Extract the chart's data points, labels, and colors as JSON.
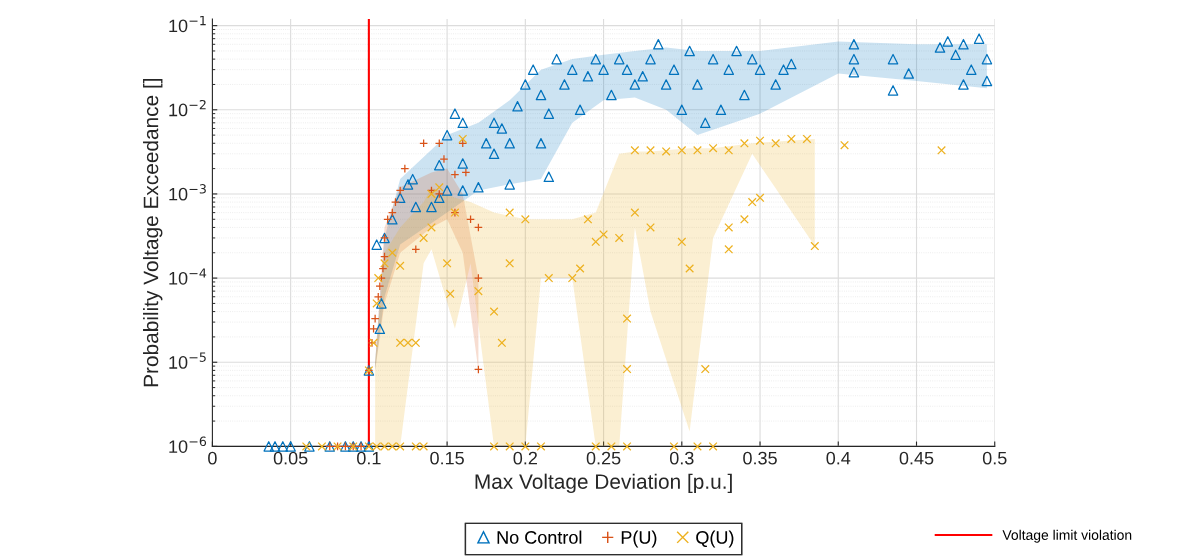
{
  "chart_data": {
    "type": "scatter",
    "xlabel": "Max Voltage Deviation [p.u.]",
    "ylabel": "Probability Voltage Exceedance []",
    "log": "y",
    "grid": true,
    "legend": "bottom",
    "xlim": [
      0,
      0.5
    ],
    "xticks": [
      0,
      0.05,
      0.1,
      0.15,
      0.2,
      0.25,
      0.3,
      0.35,
      0.4,
      0.45,
      0.5
    ],
    "ylim": [
      1e-06,
      0.12
    ],
    "yticks": [
      {
        "value": 1e-06,
        "label": "10$^{−6}$"
      },
      {
        "value": 1e-05,
        "label": "10$^{−5}$"
      },
      {
        "value": 0.0001,
        "label": "10$^{−4}$"
      },
      {
        "value": 0.001,
        "label": "10$^{−3}$"
      },
      {
        "value": 0.01,
        "label": "10$^{−2}$"
      },
      {
        "value": 0.1,
        "label": "10$^{−1}$"
      }
    ],
    "ref_lines": [
      {
        "axis": "x",
        "value": 0.1,
        "label": "Voltage limit violation",
        "color": "#ff0000",
        "line_style": "solid"
      }
    ],
    "series": [
      {
        "type": "line",
        "color": "#0072bd",
        "x": [
          0.104,
          0.11,
          0.12,
          0.15,
          0.17,
          0.19,
          0.21,
          0.23,
          0.25,
          0.27,
          0.29,
          0.31,
          0.35,
          0.4,
          0.45,
          0.495
        ],
        "values": [
          null,
          null,
          null,
          null,
          null,
          null,
          null,
          null,
          null,
          null,
          null,
          null,
          null,
          null,
          null,
          null
        ],
        "lower": [
          8e-06,
          6e-05,
          0.00025,
          0.0006,
          0.0011,
          0.0013,
          0.0015,
          0.007,
          0.013,
          0.014,
          0.01,
          0.005,
          0.009,
          0.027,
          0.022,
          0.018
        ],
        "upper": [
          1e-05,
          0.0003,
          0.0015,
          0.005,
          0.007,
          0.013,
          0.03,
          0.04,
          0.045,
          0.05,
          0.055,
          0.05,
          0.05,
          0.065,
          0.06,
          0.06
        ]
      },
      {
        "type": "line",
        "color": "#d95319",
        "x": [
          0.104,
          0.11,
          0.12,
          0.14,
          0.15,
          0.16,
          0.17
        ],
        "values": [
          null,
          null,
          null,
          null,
          null,
          null,
          null
        ],
        "lower": [
          8e-06,
          5e-05,
          0.0002,
          0.0004,
          0.0005,
          0.0002,
          8e-06
        ],
        "upper": [
          1e-05,
          0.0004,
          0.0012,
          0.0018,
          0.002,
          0.001,
          0.0001
        ]
      },
      {
        "type": "line",
        "color": "#edb120",
        "x": [
          0.104,
          0.11,
          0.12,
          0.135,
          0.14,
          0.155,
          0.165,
          0.18,
          0.2,
          0.21,
          0.23,
          0.245,
          0.26,
          0.27,
          0.28,
          0.305,
          0.32,
          0.345,
          0.385
        ],
        "values": [
          null,
          null,
          null,
          null,
          null,
          null,
          null,
          null,
          null,
          null,
          null,
          null,
          null,
          null,
          null,
          null,
          null,
          null,
          null
        ],
        "lower": [
          1e-06,
          1e-06,
          1e-06,
          0.00015,
          0.00022,
          2.5e-05,
          0.00015,
          1e-06,
          1e-06,
          0.0001,
          0.0001,
          1e-06,
          1e-06,
          0.0004,
          4e-05,
          1.5e-06,
          0.0003,
          0.003,
          0.00024
        ],
        "upper": [
          1e-05,
          0.0002,
          0.0004,
          0.0008,
          0.0012,
          0.0009,
          0.0008,
          0.0006,
          0.0005,
          0.0005,
          0.0005,
          0.0006,
          0.003,
          0.0032,
          0.0032,
          0.0035,
          0.0035,
          0.004,
          0.0045
        ]
      },
      {
        "name": "No Control",
        "color": "#0072bd",
        "marker": "triangle",
        "x": [
          0.036,
          0.04,
          0.045,
          0.05,
          0.062,
          0.075,
          0.085,
          0.09,
          0.095,
          0.1,
          0.1,
          0.107,
          0.108,
          0.105,
          0.11,
          0.115,
          0.12,
          0.125,
          0.128,
          0.13,
          0.14,
          0.145,
          0.15,
          0.16,
          0.16,
          0.145,
          0.15,
          0.155,
          0.16,
          0.17,
          0.175,
          0.18,
          0.18,
          0.185,
          0.19,
          0.19,
          0.195,
          0.2,
          0.205,
          0.21,
          0.21,
          0.215,
          0.215,
          0.22,
          0.225,
          0.23,
          0.235,
          0.24,
          0.245,
          0.25,
          0.255,
          0.26,
          0.265,
          0.27,
          0.275,
          0.28,
          0.285,
          0.29,
          0.295,
          0.3,
          0.305,
          0.31,
          0.315,
          0.32,
          0.325,
          0.33,
          0.335,
          0.34,
          0.345,
          0.35,
          0.36,
          0.365,
          0.37,
          0.41,
          0.41,
          0.41,
          0.435,
          0.435,
          0.445,
          0.465,
          0.47,
          0.475,
          0.48,
          0.485,
          0.49,
          0.48,
          0.495,
          0.495
        ],
        "values": [
          1e-06,
          1e-06,
          1e-06,
          1e-06,
          1e-06,
          1e-06,
          1e-06,
          1e-06,
          1e-06,
          1e-06,
          8e-06,
          2.5e-05,
          5e-05,
          0.00025,
          0.0003,
          0.0005,
          0.0009,
          0.0013,
          0.0015,
          0.0007,
          0.0007,
          0.0009,
          0.0011,
          0.0011,
          0.0023,
          0.0022,
          0.005,
          0.009,
          0.007,
          0.0012,
          0.004,
          0.007,
          0.003,
          0.006,
          0.0013,
          0.004,
          0.011,
          0.02,
          0.03,
          0.015,
          0.004,
          0.0016,
          0.009,
          0.04,
          0.02,
          0.03,
          0.01,
          0.025,
          0.04,
          0.03,
          0.015,
          0.04,
          0.03,
          0.02,
          0.025,
          0.04,
          0.06,
          0.02,
          0.03,
          0.01,
          0.05,
          0.02,
          0.007,
          0.04,
          0.01,
          0.03,
          0.05,
          0.015,
          0.04,
          0.03,
          0.02,
          0.03,
          0.035,
          0.06,
          0.04,
          0.028,
          0.04,
          0.017,
          0.027,
          0.055,
          0.065,
          0.045,
          0.06,
          0.03,
          0.07,
          0.02,
          0.04,
          0.022
        ]
      },
      {
        "name": "P(U)",
        "color": "#d95319",
        "marker": "plus",
        "x": [
          0.075,
          0.08,
          0.085,
          0.09,
          0.095,
          0.1,
          0.102,
          0.103,
          0.104,
          0.106,
          0.107,
          0.108,
          0.109,
          0.11,
          0.11,
          0.112,
          0.115,
          0.117,
          0.12,
          0.123,
          0.13,
          0.135,
          0.14,
          0.145,
          0.148,
          0.155,
          0.16,
          0.162,
          0.165,
          0.17,
          0.17,
          0.17,
          0.155,
          0.145
        ],
        "values": [
          1e-06,
          1e-06,
          1e-06,
          1e-06,
          1e-06,
          8e-06,
          1.7e-05,
          2.5e-05,
          3.3e-05,
          6e-05,
          8e-05,
          0.0001,
          0.00013,
          0.00018,
          0.0003,
          0.0005,
          0.0006,
          0.0008,
          0.0011,
          0.002,
          0.00022,
          0.004,
          0.0011,
          0.004,
          0.0026,
          0.0017,
          0.004,
          0.0018,
          0.0005,
          0.0004,
          0.0001,
          8.2e-06,
          0.0006,
          0.001
        ]
      },
      {
        "name": "Q(U)",
        "color": "#edb120",
        "marker": "cross",
        "x": [
          0.06,
          0.07,
          0.08,
          0.09,
          0.1,
          0.105,
          0.11,
          0.115,
          0.12,
          0.13,
          0.135,
          0.18,
          0.19,
          0.2,
          0.21,
          0.245,
          0.255,
          0.265,
          0.295,
          0.31,
          0.32,
          0.1,
          0.103,
          0.105,
          0.106,
          0.11,
          0.115,
          0.12,
          0.125,
          0.12,
          0.13,
          0.135,
          0.14,
          0.145,
          0.14,
          0.15,
          0.152,
          0.155,
          0.16,
          0.17,
          0.18,
          0.185,
          0.19,
          0.19,
          0.2,
          0.215,
          0.23,
          0.24,
          0.245,
          0.235,
          0.25,
          0.26,
          0.265,
          0.265,
          0.27,
          0.28,
          0.29,
          0.3,
          0.31,
          0.32,
          0.33,
          0.34,
          0.35,
          0.36,
          0.37,
          0.38,
          0.404,
          0.466,
          0.385,
          0.305,
          0.315,
          0.27,
          0.28,
          0.3,
          0.33,
          0.34,
          0.345,
          0.35,
          0.33
        ],
        "values": [
          1e-06,
          1e-06,
          1e-06,
          1e-06,
          1e-06,
          1e-06,
          1e-06,
          1e-06,
          1e-06,
          1e-06,
          1e-06,
          1e-06,
          1e-06,
          1e-06,
          1e-06,
          1e-06,
          1e-06,
          1e-06,
          1e-06,
          1e-06,
          1e-06,
          8e-06,
          1.7e-05,
          5e-05,
          0.0001,
          0.00015,
          0.0002,
          1.7e-05,
          1.7e-05,
          0.00014,
          1.7e-05,
          0.0003,
          0.0004,
          0.0012,
          0.001,
          0.00015,
          6.5e-05,
          0.0006,
          0.0045,
          7e-05,
          4e-05,
          1.7e-05,
          0.00015,
          0.0006,
          0.0005,
          0.0001,
          0.0001,
          0.0005,
          0.00027,
          0.00013,
          0.00033,
          0.0003,
          3.3e-05,
          8.3e-06,
          0.0033,
          0.0033,
          0.0032,
          0.0033,
          0.0033,
          0.0035,
          0.0033,
          0.004,
          0.0043,
          0.004,
          0.0045,
          0.0045,
          0.0038,
          0.0033,
          0.00024,
          0.00013,
          8.3e-06,
          0.0006,
          0.0004,
          0.00027,
          0.0004,
          0.0005,
          0.0008,
          0.0009,
          0.00022
        ]
      }
    ]
  }
}
